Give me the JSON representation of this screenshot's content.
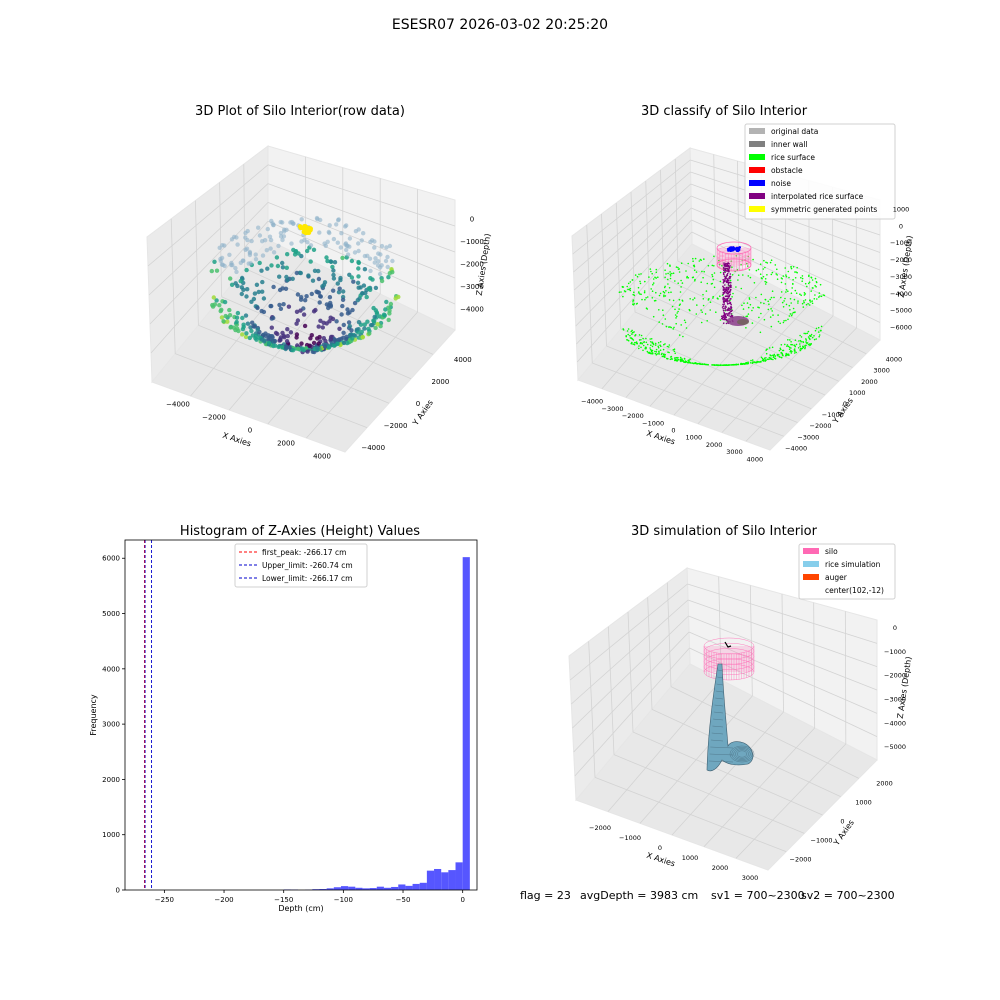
{
  "figure": {
    "suptitle": "ESESR07 2026-03-02 20:25:20"
  },
  "colors": {
    "original_data": "#b3b3b3",
    "inner_wall": "#808080",
    "rice_surface": "#00ff00",
    "obstacle": "#ff0000",
    "noise": "#0000ff",
    "interpolated": "#800080",
    "symmetric": "#ffff00",
    "silo": "#ff69b4",
    "rice_sim": "#87ceeb",
    "auger": "#ff4500",
    "hist_bar": "#4d4dff",
    "hist_peak": "#ff0000",
    "hist_limit": "#0000cd"
  },
  "chart_data": [
    {
      "type": "scatter",
      "panel": "raw",
      "title": "3D Plot of Silo Interior(row data)",
      "xlabel": "X Axies",
      "ylabel": "Y Axies",
      "zlabel": "Z Axies (Depth)",
      "xticks": [
        "−4000",
        "−2000",
        "0",
        "2000",
        "4000"
      ],
      "yticks": [
        "−4000",
        "−2000",
        "0",
        "2000",
        "4000"
      ],
      "zticks": [
        "0",
        "−1000",
        "−2000",
        "−3000",
        "−4000"
      ],
      "colormap": "viridis"
    },
    {
      "type": "scatter",
      "panel": "classify",
      "title": "3D classify of Silo Interior",
      "xlabel": "X Axies",
      "ylabel": "Y Axies",
      "zlabel": "Z Axies (Depth)",
      "xticks": [
        "−4000",
        "−3000",
        "−2000",
        "−1000",
        "0",
        "1000",
        "2000",
        "3000",
        "4000"
      ],
      "yticks": [
        "−4000",
        "−3000",
        "−2000",
        "−1000",
        "0",
        "1000",
        "2000",
        "3000",
        "4000"
      ],
      "zticks": [
        "1000",
        "0",
        "−1000",
        "−2000",
        "−3000",
        "−4000",
        "−5000",
        "−6000"
      ],
      "legend": [
        {
          "label": "original data",
          "color": "#b3b3b3"
        },
        {
          "label": "inner wall",
          "color": "#808080"
        },
        {
          "label": "rice surface",
          "color": "#00ff00"
        },
        {
          "label": "obstacle",
          "color": "#ff0000"
        },
        {
          "label": "noise",
          "color": "#0000ff"
        },
        {
          "label": "interpolated rice surface",
          "color": "#800080"
        },
        {
          "label": "symmetric generated points",
          "color": "#ffff00"
        }
      ],
      "legend_placement": "top-right"
    },
    {
      "type": "bar",
      "panel": "histogram",
      "title": "Histogram of Z-Axies (Height) Values",
      "xlabel": "Depth (cm)",
      "ylabel": "Frequency",
      "xlim": [
        -283,
        12
      ],
      "ylim": [
        0,
        6330
      ],
      "xticks": [
        -250,
        -200,
        -150,
        -100,
        -50,
        0
      ],
      "xtick_labels": [
        "−250",
        "−200",
        "−150",
        "−100",
        "−50",
        "0"
      ],
      "yticks": [
        0,
        1000,
        2000,
        3000,
        4000,
        5000,
        6000
      ],
      "yticks_labels": [
        "0",
        "1000",
        "2000",
        "3000",
        "4000",
        "5000",
        "6000"
      ],
      "bins": [
        {
          "x0": -150,
          "x1": -144,
          "y": 10
        },
        {
          "x0": -144,
          "x1": -138,
          "y": 8
        },
        {
          "x0": -132,
          "x1": -126,
          "y": 5
        },
        {
          "x0": -126,
          "x1": -120,
          "y": 15
        },
        {
          "x0": -120,
          "x1": -114,
          "y": 18
        },
        {
          "x0": -114,
          "x1": -108,
          "y": 30
        },
        {
          "x0": -108,
          "x1": -102,
          "y": 50
        },
        {
          "x0": -102,
          "x1": -96,
          "y": 70
        },
        {
          "x0": -96,
          "x1": -90,
          "y": 60
        },
        {
          "x0": -90,
          "x1": -84,
          "y": 40
        },
        {
          "x0": -84,
          "x1": -78,
          "y": 30
        },
        {
          "x0": -78,
          "x1": -72,
          "y": 35
        },
        {
          "x0": -72,
          "x1": -66,
          "y": 60
        },
        {
          "x0": -66,
          "x1": -60,
          "y": 40
        },
        {
          "x0": -60,
          "x1": -54,
          "y": 55
        },
        {
          "x0": -54,
          "x1": -48,
          "y": 100
        },
        {
          "x0": -48,
          "x1": -42,
          "y": 75
        },
        {
          "x0": -42,
          "x1": -36,
          "y": 110
        },
        {
          "x0": -36,
          "x1": -30,
          "y": 130
        },
        {
          "x0": -30,
          "x1": -24,
          "y": 350
        },
        {
          "x0": -24,
          "x1": -18,
          "y": 380
        },
        {
          "x0": -18,
          "x1": -12,
          "y": 320
        },
        {
          "x0": -12,
          "x1": -6,
          "y": 360
        },
        {
          "x0": -6,
          "x1": 0,
          "y": 500
        },
        {
          "x0": 0,
          "x1": 6,
          "y": 6020
        }
      ],
      "vlines": [
        {
          "x": -266.17,
          "color": "#ff0000"
        },
        {
          "x": -260.74,
          "color": "#0000cd"
        },
        {
          "x": -266.17,
          "color": "#0000cd"
        }
      ],
      "legend": [
        {
          "label": "first_peak: -266.17 cm",
          "color": "#ff0000"
        },
        {
          "label": "Upper_limit: -260.74 cm",
          "color": "#0000cd"
        },
        {
          "label": "Lower_limit: -266.17 cm",
          "color": "#0000cd"
        }
      ],
      "legend_placement": "top-center"
    },
    {
      "type": "area",
      "panel": "simulation",
      "title": "3D simulation of Silo Interior",
      "xlabel": "X Axies",
      "ylabel": "Y Axies",
      "zlabel": "Z Axies (Depth)",
      "xticks": [
        "−2000",
        "−1000",
        "0",
        "1000",
        "2000",
        "3000"
      ],
      "yticks": [
        "−2000",
        "−1000",
        "0",
        "1000",
        "2000"
      ],
      "zticks": [
        "0",
        "−1000",
        "−2000",
        "−3000",
        "−4000",
        "−5000"
      ],
      "legend": [
        {
          "label": "silo",
          "color": "#ff69b4"
        },
        {
          "label": "rice simulation",
          "color": "#87ceeb"
        },
        {
          "label": "auger",
          "color": "#ff4500"
        },
        {
          "label": "center(102,-12)",
          "color": ""
        }
      ],
      "legend_placement": "top-right"
    }
  ],
  "status": {
    "flag": "flag = 23",
    "avg": "avgDepth = 3983 cm",
    "sv1": "sv1 = 700~2300",
    "sv2": "sv2 = 700~2300"
  }
}
